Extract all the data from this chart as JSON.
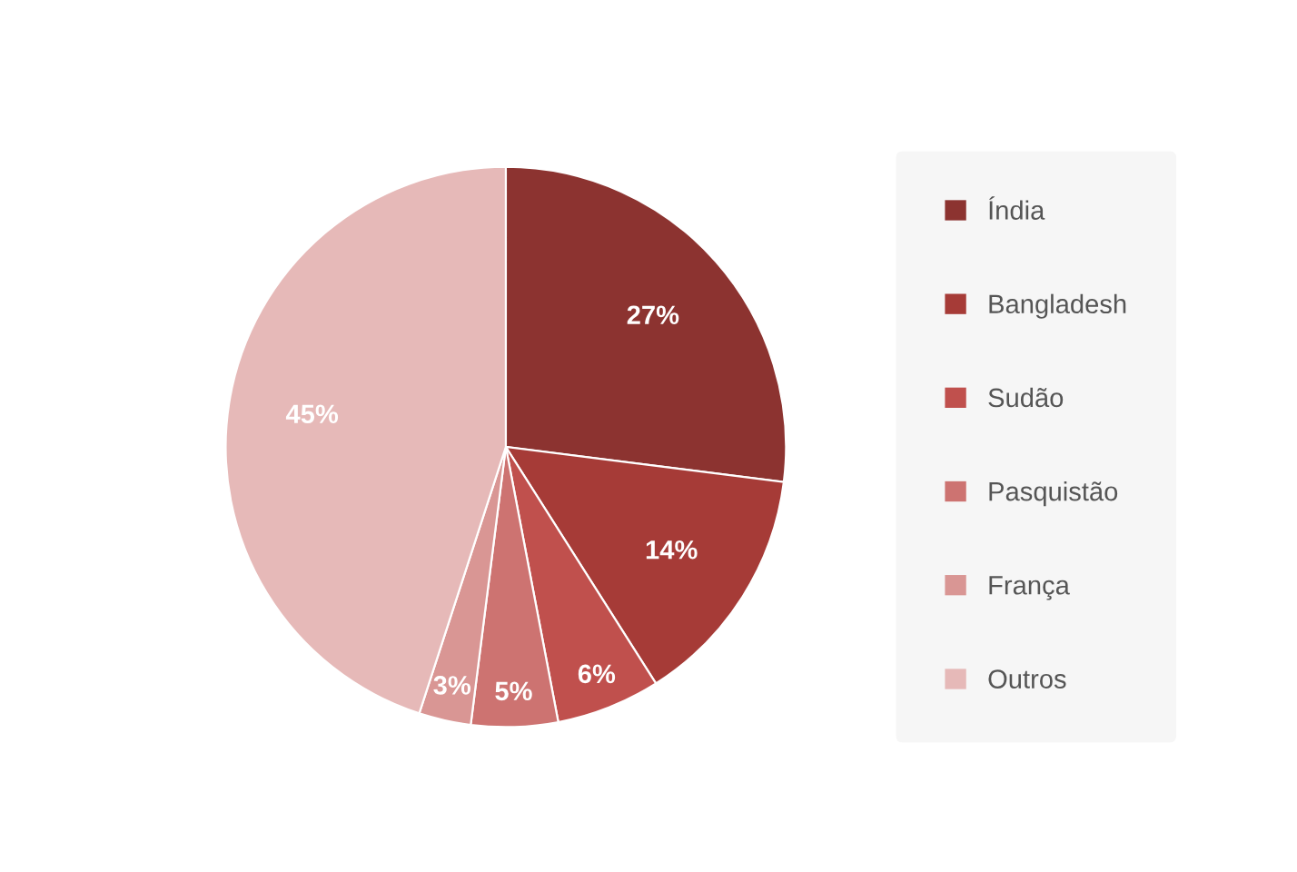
{
  "chart_data": {
    "type": "pie",
    "categories": [
      "Índia",
      "Bangladesh",
      "Sudão",
      "Pasquistão",
      "França",
      "Outros"
    ],
    "values": [
      27,
      14,
      6,
      5,
      3,
      45
    ],
    "colors": [
      "#8c3330",
      "#a63b37",
      "#c0504d",
      "#cd7371",
      "#d99694",
      "#e6b9b8"
    ],
    "value_labels": [
      "27%",
      "14%",
      "6%",
      "5%",
      "3%",
      "45%"
    ],
    "legend": "right"
  }
}
